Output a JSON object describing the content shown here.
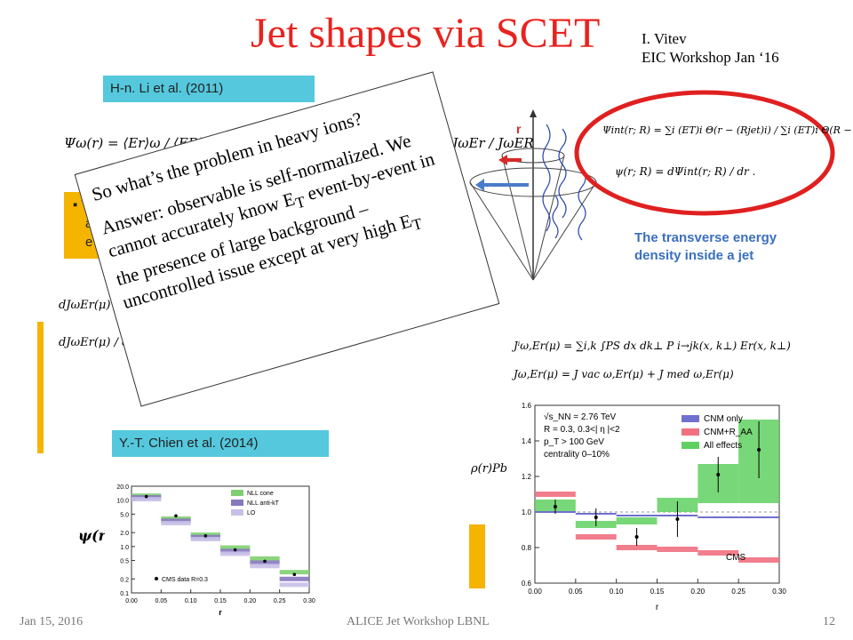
{
  "slide": {
    "title": "Jet shapes via SCET",
    "author_line1": "I. Vitev",
    "author_line2": "EIC Workshop Jan ‘16",
    "ref_left": "H-n. Li et al. (2011)",
    "ref_bottom": "Y.-T. Chien et al. (2014)",
    "bullet_partial_line1": "To",
    "bullet_partial_line2": "acc",
    "bullet_partial_line3": "evo",
    "psi_omega_eq": "Ψω(r) = ⟨Er⟩ω / ⟨ER⟩ω = JωEr(μ)/Jω(μ) / JωER(μ)/Jω(μ) = JωEr / JωER",
    "dj_eq_1": "dJωEr(μ) / d ln μ =",
    "dj_eq_2": "dJωEr(μ) / d ln μ =",
    "diagram_r_label": "r",
    "psi_int_eq": "Ψint(r; R) = ∑i (ET)i Θ(r − (Rjet)i) / ∑i (ET)i Θ(R − (Rjet)i)",
    "psi_eq": "ψ(r; R) = dΨint(r; R) / dr .",
    "transverse_caption_1": "The transverse energy",
    "transverse_caption_2": "density inside a jet",
    "j_eq_1": "Jⁱω,Er(μ) = ∑i,k ∫PS dx dk⊥ P i→jk(x, k⊥) Er(x, k⊥)",
    "j_eq_2": "Jω,Er(μ) = J vac ω,Er(μ) + J med ω,Er(μ)",
    "callout_q": "So what’s the problem in heavy ions?",
    "callout_a_1": "Answer: observable is self-normalized. We cannot accurately know E",
    "callout_a_sub1": "T",
    "callout_a_2": " event-by-event in the presence of large background – uncontrolled issue except at very high E",
    "callout_a_sub2": "T",
    "footer_date": "Jan 15, 2016",
    "footer_center": "ALICE Jet Workshop LBNL",
    "footer_page": "12"
  },
  "chart_data": [
    {
      "type": "bar",
      "title": "",
      "xlabel": "r",
      "ylabel": "ψ(r)",
      "y_scale": "log",
      "ylim": [
        0.1,
        20
      ],
      "x_ticks": [
        "0.00",
        "0.05",
        "0.10",
        "0.15",
        "0.20",
        "0.25",
        "0.30"
      ],
      "y_ticks": [
        "20.0",
        "10.0",
        "5.0",
        "2.0",
        "1.0",
        "0.5",
        "0.2",
        "0.1"
      ],
      "legend": [
        "NLL cone",
        "NLL anti-kT",
        "LO"
      ],
      "annotation": "CMS data R=0.3",
      "bins": [
        [
          0.0,
          0.05
        ],
        [
          0.05,
          0.1
        ],
        [
          0.1,
          0.15
        ],
        [
          0.15,
          0.2
        ],
        [
          0.2,
          0.25
        ],
        [
          0.25,
          0.3
        ]
      ],
      "series": [
        {
          "name": "NLL cone",
          "values": [
            12.5,
            4.0,
            1.8,
            0.95,
            0.55,
            0.28
          ]
        },
        {
          "name": "NLL anti-kT",
          "values": [
            11.5,
            3.6,
            1.6,
            0.8,
            0.45,
            0.2
          ]
        },
        {
          "name": "LO",
          "values": [
            10.5,
            3.2,
            1.45,
            0.7,
            0.38,
            0.15
          ]
        }
      ],
      "data_points": [
        12.0,
        4.6,
        1.7,
        0.85,
        0.48,
        0.25
      ],
      "colors": {
        "cone": "#7fcf70",
        "antikt": "#8878c0",
        "lo": "#c8c0e8"
      }
    },
    {
      "type": "bar",
      "title": "",
      "xlabel": "r",
      "ylabel": "ρ(r)PbPb / ρ(r)pp",
      "ylim": [
        0.6,
        1.6
      ],
      "x_ticks": [
        "0.00",
        "0.05",
        "0.10",
        "0.15",
        "0.20",
        "0.25",
        "0.30"
      ],
      "y_ticks": [
        "0.6",
        "0.8",
        "1.0",
        "1.2",
        "1.4",
        "1.6"
      ],
      "legend": [
        "CNM only",
        "CNM+R_AA",
        "All effects"
      ],
      "text_block": [
        "√s_NN = 2.76 TeV",
        "R = 0.3, 0.3<| η |<2",
        "p_T > 100 GeV",
        "centrality  0–10%"
      ],
      "annotation": "CMS",
      "bins": [
        [
          0.0,
          0.05
        ],
        [
          0.05,
          0.1
        ],
        [
          0.1,
          0.15
        ],
        [
          0.15,
          0.2
        ],
        [
          0.2,
          0.25
        ],
        [
          0.25,
          0.3
        ]
      ],
      "series": [
        {
          "name": "CNM only",
          "values": [
            1.0,
            0.99,
            0.98,
            0.98,
            0.97,
            0.97
          ]
        },
        {
          "name": "CNM+R_AA",
          "values": [
            1.1,
            0.86,
            0.8,
            0.79,
            0.77,
            0.73
          ]
        },
        {
          "name": "All effects",
          "ranges": [
            [
              1.0,
              1.07
            ],
            [
              0.91,
              0.95
            ],
            [
              0.93,
              0.97
            ],
            [
              1.0,
              1.08
            ],
            [
              1.05,
              1.27
            ],
            [
              1.05,
              1.52
            ]
          ]
        }
      ],
      "data_points": [
        1.03,
        0.97,
        0.86,
        0.96,
        1.21,
        1.35
      ],
      "errors": [
        0.04,
        0.05,
        0.05,
        0.1,
        0.1,
        0.16
      ],
      "colors": {
        "cnm": "#7070d0",
        "cnm_raa": "#f07080",
        "all": "#60d060"
      }
    }
  ]
}
